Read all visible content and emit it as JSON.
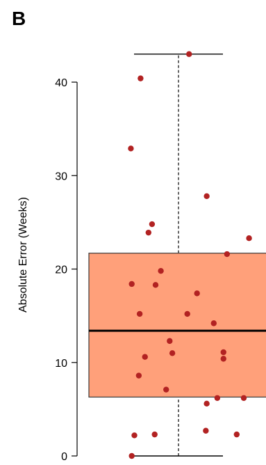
{
  "panel_label": "B",
  "chart_data": {
    "type": "box",
    "title": "",
    "xlabel": "",
    "ylabel": "Absolute Error (Weeks)",
    "ylim": [
      0,
      40
    ],
    "yticks": [
      0,
      10,
      20,
      30,
      40
    ],
    "grid": false,
    "box": {
      "q1": 6.3,
      "median": 13.4,
      "q3": 21.7,
      "whisker_low": 0,
      "whisker_high": 43
    },
    "points": [
      {
        "y": 43.0,
        "jitter": 0.12
      },
      {
        "y": 40.4,
        "jitter": -0.43
      },
      {
        "y": 32.9,
        "jitter": -0.54
      },
      {
        "y": 27.8,
        "jitter": 0.32
      },
      {
        "y": 24.8,
        "jitter": -0.3
      },
      {
        "y": 23.9,
        "jitter": -0.34
      },
      {
        "y": 23.3,
        "jitter": 0.8
      },
      {
        "y": 21.6,
        "jitter": 0.55
      },
      {
        "y": 19.8,
        "jitter": -0.2
      },
      {
        "y": 18.4,
        "jitter": -0.53
      },
      {
        "y": 18.3,
        "jitter": -0.26
      },
      {
        "y": 17.4,
        "jitter": 0.21
      },
      {
        "y": 15.2,
        "jitter": -0.44
      },
      {
        "y": 15.2,
        "jitter": 0.1
      },
      {
        "y": 14.2,
        "jitter": 0.4
      },
      {
        "y": 12.3,
        "jitter": -0.1
      },
      {
        "y": 11.1,
        "jitter": 0.51
      },
      {
        "y": 11.0,
        "jitter": -0.07
      },
      {
        "y": 10.6,
        "jitter": -0.38
      },
      {
        "y": 10.4,
        "jitter": 0.51
      },
      {
        "y": 8.6,
        "jitter": -0.45
      },
      {
        "y": 7.1,
        "jitter": -0.14
      },
      {
        "y": 6.2,
        "jitter": 0.44
      },
      {
        "y": 6.2,
        "jitter": 0.74
      },
      {
        "y": 5.6,
        "jitter": 0.32
      },
      {
        "y": 2.7,
        "jitter": 0.31
      },
      {
        "y": 2.3,
        "jitter": -0.27
      },
      {
        "y": 2.3,
        "jitter": 0.66
      },
      {
        "y": 2.2,
        "jitter": -0.5
      },
      {
        "y": 0.0,
        "jitter": -0.53
      }
    ],
    "colors": {
      "box_fill": "#FFA07A",
      "box_stroke": "#3a3a3a",
      "median": "#000000",
      "points": "#B22222",
      "axis": "#000000",
      "whisker": "#000000"
    }
  }
}
